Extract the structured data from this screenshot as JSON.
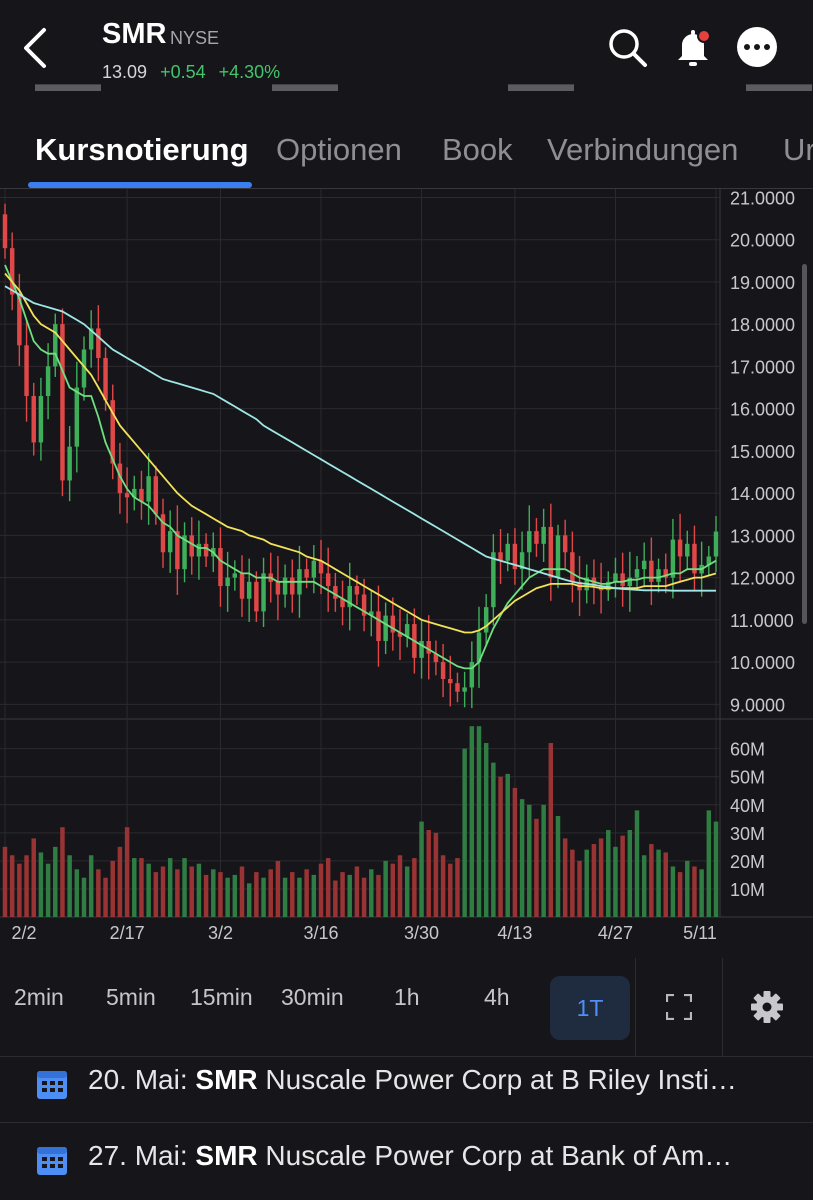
{
  "header": {
    "symbol": "SMR",
    "exchange": "NYSE",
    "price": "13.09",
    "change": "+0.54",
    "change_pct": "+4.30%",
    "up_color": "#42c46a",
    "icons": [
      "back-arrow-icon",
      "search-icon",
      "bell-icon",
      "more-icon"
    ]
  },
  "tabs": [
    {
      "label": "Kursnotierung",
      "active": true
    },
    {
      "label": "Optionen"
    },
    {
      "label": "Book"
    },
    {
      "label": "Verbindungen"
    },
    {
      "label": "Ur"
    }
  ],
  "chart_data": [
    {
      "type": "candlestick",
      "x_ticks": [
        "2/2",
        "2/17",
        "3/2",
        "3/16",
        "3/30",
        "4/13",
        "4/27",
        "5/11"
      ],
      "y_ticks": [
        "21.0000",
        "20.0000",
        "19.0000",
        "18.0000",
        "17.0000",
        "16.0000",
        "15.0000",
        "14.0000",
        "13.0000",
        "12.0000",
        "11.0000",
        "10.0000",
        "9.0000"
      ],
      "ylim": [
        8.7,
        21.2
      ],
      "up_color": "#3fae5a",
      "down_color": "#e04848",
      "closes": [
        19.8,
        18.7,
        17.5,
        16.3,
        15.2,
        16.3,
        17.0,
        18.0,
        14.3,
        15.1,
        16.5,
        17.4,
        17.9,
        17.2,
        16.2,
        14.7,
        14.0,
        13.9,
        14.1,
        13.8,
        14.4,
        13.5,
        12.6,
        13.1,
        12.2,
        13.0,
        12.5,
        12.8,
        12.5,
        12.7,
        11.8,
        12.0,
        12.1,
        11.5,
        11.9,
        11.2,
        12.1,
        11.9,
        11.6,
        12.0,
        11.6,
        12.2,
        12.0,
        12.4,
        12.1,
        11.8,
        11.5,
        11.3,
        11.8,
        11.6,
        11.1,
        11.2,
        10.5,
        11.1,
        10.7,
        10.6,
        10.9,
        10.1,
        10.5,
        10.2,
        10.0,
        9.6,
        9.5,
        9.3,
        9.4,
        10.0,
        10.7,
        11.3,
        12.6,
        12.4,
        12.8,
        12.2,
        12.6,
        13.1,
        12.8,
        13.2,
        12.0,
        13.0,
        12.6,
        11.9,
        11.7,
        12.0,
        11.8,
        11.7,
        11.9,
        12.1,
        11.8,
        12.0,
        12.2,
        12.4,
        11.9,
        12.2,
        12.0,
        12.9,
        12.5,
        12.8,
        12.1,
        12.3,
        12.5,
        13.09
      ],
      "series": [
        {
          "name": "",
          "color": "#6ee07f",
          "values": [
            19.4,
            19.0,
            18.6,
            18.1,
            17.6,
            17.4,
            17.3,
            17.3,
            16.9,
            16.5,
            16.4,
            16.3,
            16.3,
            15.8,
            15.2,
            14.8,
            14.4,
            14.1,
            13.9,
            13.8,
            13.7,
            13.5,
            13.3,
            13.2,
            13.0,
            12.9,
            12.8,
            12.7,
            12.7,
            12.6,
            12.4,
            12.3,
            12.2,
            12.1,
            12.1,
            12.0,
            12.0,
            12.0,
            11.9,
            11.9,
            11.9,
            11.9,
            11.9,
            11.9,
            11.8,
            11.7,
            11.6,
            11.5,
            11.4,
            11.3,
            11.2,
            11.1,
            11.0,
            10.9,
            10.8,
            10.7,
            10.6,
            10.5,
            10.4,
            10.3,
            10.2,
            10.1,
            10.0,
            9.9,
            9.85,
            9.85,
            10.0,
            10.4,
            10.8,
            11.1,
            11.4,
            11.6,
            11.8,
            12.0,
            12.1,
            12.2,
            12.2,
            12.2,
            12.2,
            12.1,
            12.0,
            11.95,
            11.9,
            11.85,
            11.85,
            11.9,
            11.9,
            11.95,
            11.95,
            12.0,
            12.0,
            12.0,
            12.05,
            12.1,
            12.1,
            12.2,
            12.2,
            12.2,
            12.3,
            12.4
          ]
        },
        {
          "name": "",
          "color": "#f2e25a",
          "values": [
            19.2,
            19.0,
            18.8,
            18.5,
            18.2,
            18.0,
            17.9,
            17.8,
            17.6,
            17.4,
            17.2,
            17.0,
            16.8,
            16.5,
            16.2,
            15.9,
            15.6,
            15.4,
            15.2,
            15.0,
            14.8,
            14.6,
            14.4,
            14.2,
            14.0,
            13.85,
            13.7,
            13.6,
            13.5,
            13.4,
            13.3,
            13.2,
            13.15,
            13.1,
            13.0,
            12.95,
            12.9,
            12.8,
            12.75,
            12.7,
            12.65,
            12.6,
            12.5,
            12.45,
            12.4,
            12.3,
            12.2,
            12.1,
            12.0,
            11.9,
            11.8,
            11.7,
            11.6,
            11.5,
            11.4,
            11.3,
            11.2,
            11.1,
            11.0,
            10.95,
            10.9,
            10.85,
            10.8,
            10.75,
            10.7,
            10.7,
            10.75,
            10.85,
            11.0,
            11.15,
            11.3,
            11.45,
            11.55,
            11.65,
            11.75,
            11.8,
            11.85,
            11.85,
            11.85,
            11.85,
            11.8,
            11.8,
            11.78,
            11.75,
            11.75,
            11.75,
            11.75,
            11.75,
            11.75,
            11.8,
            11.8,
            11.8,
            11.8,
            11.85,
            11.9,
            11.95,
            12.0,
            12.0,
            12.05,
            12.1
          ]
        },
        {
          "name": "",
          "color": "#9fe6e6",
          "values": [
            18.9,
            18.8,
            18.7,
            18.6,
            18.5,
            18.45,
            18.4,
            18.35,
            18.3,
            18.2,
            18.1,
            18.0,
            17.85,
            17.7,
            17.55,
            17.4,
            17.3,
            17.2,
            17.1,
            17.0,
            16.9,
            16.8,
            16.7,
            16.65,
            16.6,
            16.55,
            16.5,
            16.45,
            16.4,
            16.35,
            16.25,
            16.15,
            16.05,
            15.95,
            15.85,
            15.75,
            15.6,
            15.5,
            15.4,
            15.3,
            15.2,
            15.1,
            15.0,
            14.9,
            14.8,
            14.7,
            14.6,
            14.5,
            14.4,
            14.3,
            14.2,
            14.1,
            14.0,
            13.9,
            13.8,
            13.7,
            13.6,
            13.5,
            13.4,
            13.3,
            13.2,
            13.1,
            13.0,
            12.9,
            12.8,
            12.7,
            12.6,
            12.5,
            12.45,
            12.4,
            12.35,
            12.3,
            12.25,
            12.2,
            12.15,
            12.1,
            12.05,
            12.0,
            11.95,
            11.9,
            11.87,
            11.85,
            11.83,
            11.8,
            11.78,
            11.75,
            11.73,
            11.72,
            11.71,
            11.7,
            11.7,
            11.7,
            11.7,
            11.69,
            11.69,
            11.69,
            11.69,
            11.69,
            11.69,
            11.69
          ]
        }
      ]
    },
    {
      "type": "bar",
      "y_ticks": [
        "60M",
        "50M",
        "40M",
        "30M",
        "20M",
        "10M"
      ],
      "ylim": [
        0,
        67
      ],
      "values": [
        25,
        22,
        19,
        22,
        28,
        23,
        19,
        25,
        32,
        22,
        17,
        14,
        22,
        17,
        14,
        20,
        25,
        32,
        21,
        21,
        19,
        16,
        18,
        21,
        17,
        21,
        18,
        19,
        15,
        17,
        16,
        14,
        15,
        18,
        12,
        16,
        14,
        17,
        20,
        14,
        16,
        14,
        17,
        15,
        19,
        21,
        13,
        16,
        15,
        18,
        14,
        17,
        15,
        20,
        19,
        22,
        18,
        21,
        34,
        31,
        30,
        22,
        19,
        21,
        60,
        68,
        68,
        62,
        55,
        50,
        51,
        46,
        42,
        40,
        35,
        40,
        62,
        36,
        28,
        24,
        20,
        24,
        26,
        28,
        31,
        25,
        29,
        31,
        38,
        22,
        26,
        24,
        23,
        18,
        16,
        20,
        18,
        17,
        38,
        34
      ]
    }
  ],
  "timeframes": [
    "2min",
    "5min",
    "15min",
    "30min",
    "1h",
    "4h",
    "1T"
  ],
  "active_timeframe": "1T",
  "events": [
    {
      "date": "20. Mai:",
      "symbol": "SMR",
      "text": "Nuscale Power Corp at B Riley Insti…"
    },
    {
      "date": "27. Mai:",
      "symbol": "SMR",
      "text": "Nuscale Power Corp at Bank of Am…"
    }
  ]
}
